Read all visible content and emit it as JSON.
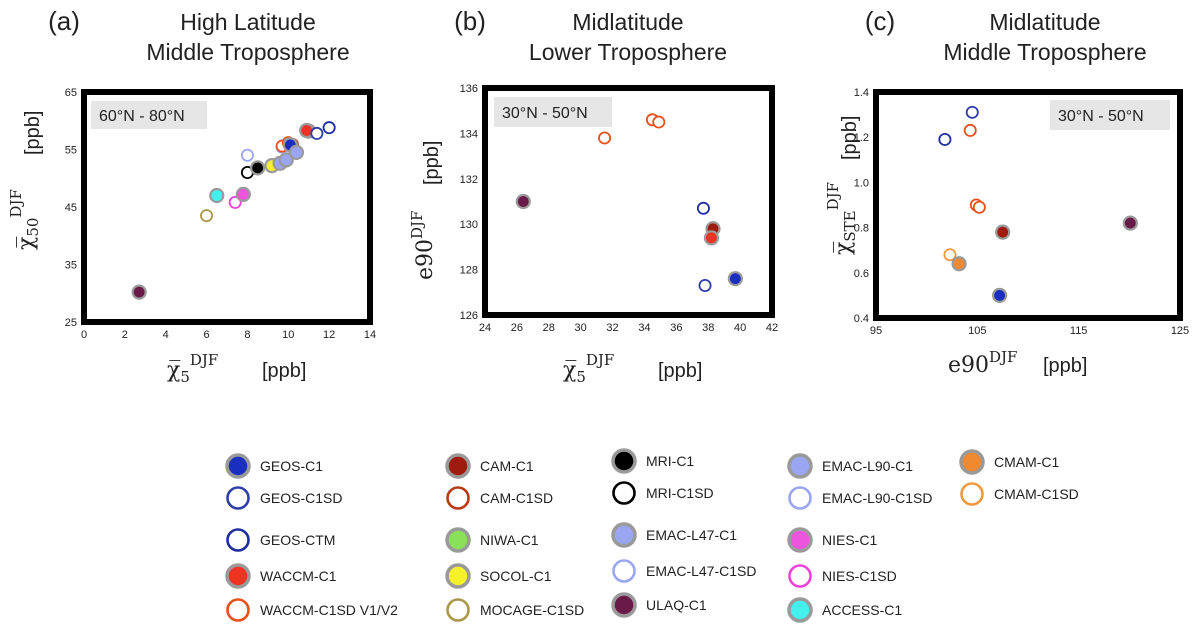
{
  "chart_data": [
    {
      "type": "scatter",
      "panel": "(a)",
      "title": [
        "High Latitude",
        "Middle Troposphere"
      ],
      "region": "60°N - 80°N",
      "xlabel_symbol": "χ̅",
      "xlabel_sub": "5",
      "xlabel_sup": "DJF",
      "xlabel_unit": "[ppb]",
      "ylabel_symbol": "χ̅",
      "ylabel_sub": "50",
      "ylabel_sup": "DJF",
      "ylabel_unit": "[ppb]",
      "xlim": [
        0,
        14
      ],
      "ylim": [
        25,
        65
      ],
      "xticks": [
        0,
        2,
        4,
        6,
        8,
        10,
        12,
        14
      ],
      "yticks": [
        25,
        35,
        45,
        55,
        65
      ],
      "points": [
        {
          "model": "ULAQ-C1",
          "x": 2.7,
          "y": 30.2
        },
        {
          "model": "MOCAGE-C1SD",
          "x": 6.0,
          "y": 43.5
        },
        {
          "model": "ACCESS-C1",
          "x": 6.5,
          "y": 47.0
        },
        {
          "model": "NIES-C1SD",
          "x": 7.4,
          "y": 45.8
        },
        {
          "model": "NIES-C1",
          "x": 7.8,
          "y": 47.2
        },
        {
          "model": "EMAC-L47-C1SD",
          "x": 8.0,
          "y": 54.0
        },
        {
          "model": "MRI-C1SD",
          "x": 8.0,
          "y": 51.0
        },
        {
          "model": "MRI-C1",
          "x": 8.5,
          "y": 51.8
        },
        {
          "model": "SOCOL-C1",
          "x": 9.2,
          "y": 52.2
        },
        {
          "model": "EMAC-L90-C1",
          "x": 9.6,
          "y": 52.6
        },
        {
          "model": "EMAC-L47-C1",
          "x": 9.9,
          "y": 53.2
        },
        {
          "model": "EMAC-L90-C1SD",
          "x": 9.7,
          "y": 55.4
        },
        {
          "model": "WACCM-C1SD V1/V2",
          "x": 9.7,
          "y": 55.6
        },
        {
          "model": "WACCM-C1SD V1/V2",
          "x": 10.0,
          "y": 56.2
        },
        {
          "model": "CAM-C1SD",
          "x": 10.2,
          "y": 55.9
        },
        {
          "model": "GEOS-C1",
          "x": 10.1,
          "y": 55.8
        },
        {
          "model": "EMAC-L47-C1",
          "x": 10.4,
          "y": 54.5
        },
        {
          "model": "CAM-C1",
          "x": 11.0,
          "y": 58.2
        },
        {
          "model": "WACCM-C1",
          "x": 10.9,
          "y": 58.3
        },
        {
          "model": "GEOS-C1SD",
          "x": 11.4,
          "y": 57.8
        },
        {
          "model": "GEOS-CTM",
          "x": 12.0,
          "y": 58.8
        }
      ]
    },
    {
      "type": "scatter",
      "panel": "(b)",
      "title": [
        "Midlatitude",
        "Lower Troposphere"
      ],
      "region": "30°N - 50°N",
      "xlabel_symbol": "χ̅",
      "xlabel_sub": "5",
      "xlabel_sup": "DJF",
      "xlabel_unit": "[ppb]",
      "ylabel_symbol": "e90",
      "ylabel_sup": "DJF",
      "ylabel_unit": "[ppb]",
      "xlim": [
        24,
        42
      ],
      "ylim": [
        126,
        136
      ],
      "xticks": [
        24,
        26,
        28,
        30,
        32,
        34,
        36,
        38,
        40,
        42
      ],
      "yticks": [
        126,
        128,
        130,
        132,
        134,
        136
      ],
      "points": [
        {
          "model": "ULAQ-C1",
          "x": 26.4,
          "y": 131.0
        },
        {
          "model": "WACCM-C1SD V1/V2",
          "x": 31.5,
          "y": 133.8
        },
        {
          "model": "WACCM-C1SD V1/V2",
          "x": 34.5,
          "y": 134.6
        },
        {
          "model": "WACCM-C1SD V1/V2",
          "x": 34.9,
          "y": 134.5
        },
        {
          "model": "GEOS-CTM",
          "x": 37.7,
          "y": 130.7
        },
        {
          "model": "GEOS-C1SD",
          "x": 37.8,
          "y": 127.3
        },
        {
          "model": "CAM-C1",
          "x": 38.3,
          "y": 129.8
        },
        {
          "model": "WACCM-C1",
          "x": 38.2,
          "y": 129.4
        },
        {
          "model": "GEOS-C1",
          "x": 39.7,
          "y": 127.6
        }
      ]
    },
    {
      "type": "scatter",
      "panel": "(c)",
      "title": [
        "Midlatitude",
        "Middle Troposphere"
      ],
      "region": "30°N - 50°N",
      "xlabel_symbol": "e90",
      "xlabel_sup": "DJF",
      "xlabel_unit": "[ppb]",
      "ylabel_symbol": "χ̅",
      "ylabel_sub": "STE",
      "ylabel_sup": "DJF",
      "ylabel_unit": "[ppb]",
      "xlim": [
        95,
        125
      ],
      "ylim": [
        0.4,
        1.4
      ],
      "xticks": [
        95,
        105,
        115,
        125
      ],
      "yticks": [
        0.4,
        0.6,
        0.8,
        1.0,
        1.2,
        1.4
      ],
      "points": [
        {
          "model": "GEOS-CTM",
          "x": 101.8,
          "y": 1.19
        },
        {
          "model": "GEOS-C1SD",
          "x": 104.5,
          "y": 1.31
        },
        {
          "model": "WACCM-C1SD V1/V2",
          "x": 104.3,
          "y": 1.23
        },
        {
          "model": "WACCM-C1SD V1/V2",
          "x": 104.9,
          "y": 0.9
        },
        {
          "model": "WACCM-C1SD V1/V2",
          "x": 105.2,
          "y": 0.89
        },
        {
          "model": "CMAM-C1SD",
          "x": 102.3,
          "y": 0.68
        },
        {
          "model": "CMAM-C1",
          "x": 103.2,
          "y": 0.64
        },
        {
          "model": "GEOS-C1",
          "x": 107.2,
          "y": 0.5
        },
        {
          "model": "CAM-C1",
          "x": 107.5,
          "y": 0.78
        },
        {
          "model": "ULAQ-C1",
          "x": 120.1,
          "y": 0.82
        }
      ]
    }
  ],
  "legend": [
    {
      "label": "GEOS-C1",
      "color": "#1a2fbf",
      "filled": true
    },
    {
      "label": "GEOS-C1SD",
      "color": "#2f3fa8",
      "filled": false
    },
    {
      "label": "GEOS-CTM",
      "color": "#1f2fa0",
      "filled": false
    },
    {
      "label": "WACCM-C1",
      "color": "#ee3322",
      "filled": true
    },
    {
      "label": "WACCM-C1SD V1/V2",
      "color": "#e8501c",
      "filled": false
    },
    {
      "label": "CAM-C1",
      "color": "#a01a0e",
      "filled": true
    },
    {
      "label": "CAM-C1SD",
      "color": "#b83a14",
      "filled": false
    },
    {
      "label": "NIWA-C1",
      "color": "#8be05a",
      "filled": true
    },
    {
      "label": "SOCOL-C1",
      "color": "#f6f22a",
      "filled": true
    },
    {
      "label": "MOCAGE-C1SD",
      "color": "#a89848",
      "filled": false
    },
    {
      "label": "MRI-C1",
      "color": "#000000",
      "filled": true
    },
    {
      "label": "MRI-C1SD",
      "color": "#000000",
      "filled": false
    },
    {
      "label": "EMAC-L47-C1",
      "color": "#9aa6f2",
      "filled": true
    },
    {
      "label": "EMAC-L47-C1SD",
      "color": "#9aa6f2",
      "filled": false
    },
    {
      "label": "ULAQ-C1",
      "color": "#6a1a48",
      "filled": true
    },
    {
      "label": "EMAC-L90-C1",
      "color": "#9aa6f2",
      "filled": true
    },
    {
      "label": "EMAC-L90-C1SD",
      "color": "#9aa6f2",
      "filled": false
    },
    {
      "label": "NIES-C1",
      "color": "#ee55dd",
      "filled": true
    },
    {
      "label": "NIES-C1SD",
      "color": "#ee44dd",
      "filled": false
    },
    {
      "label": "ACCESS-C1",
      "color": "#44f0ee",
      "filled": true
    },
    {
      "label": "CMAM-C1",
      "color": "#f08a30",
      "filled": true
    },
    {
      "label": "CMAM-C1SD",
      "color": "#f09a40",
      "filled": false
    }
  ]
}
